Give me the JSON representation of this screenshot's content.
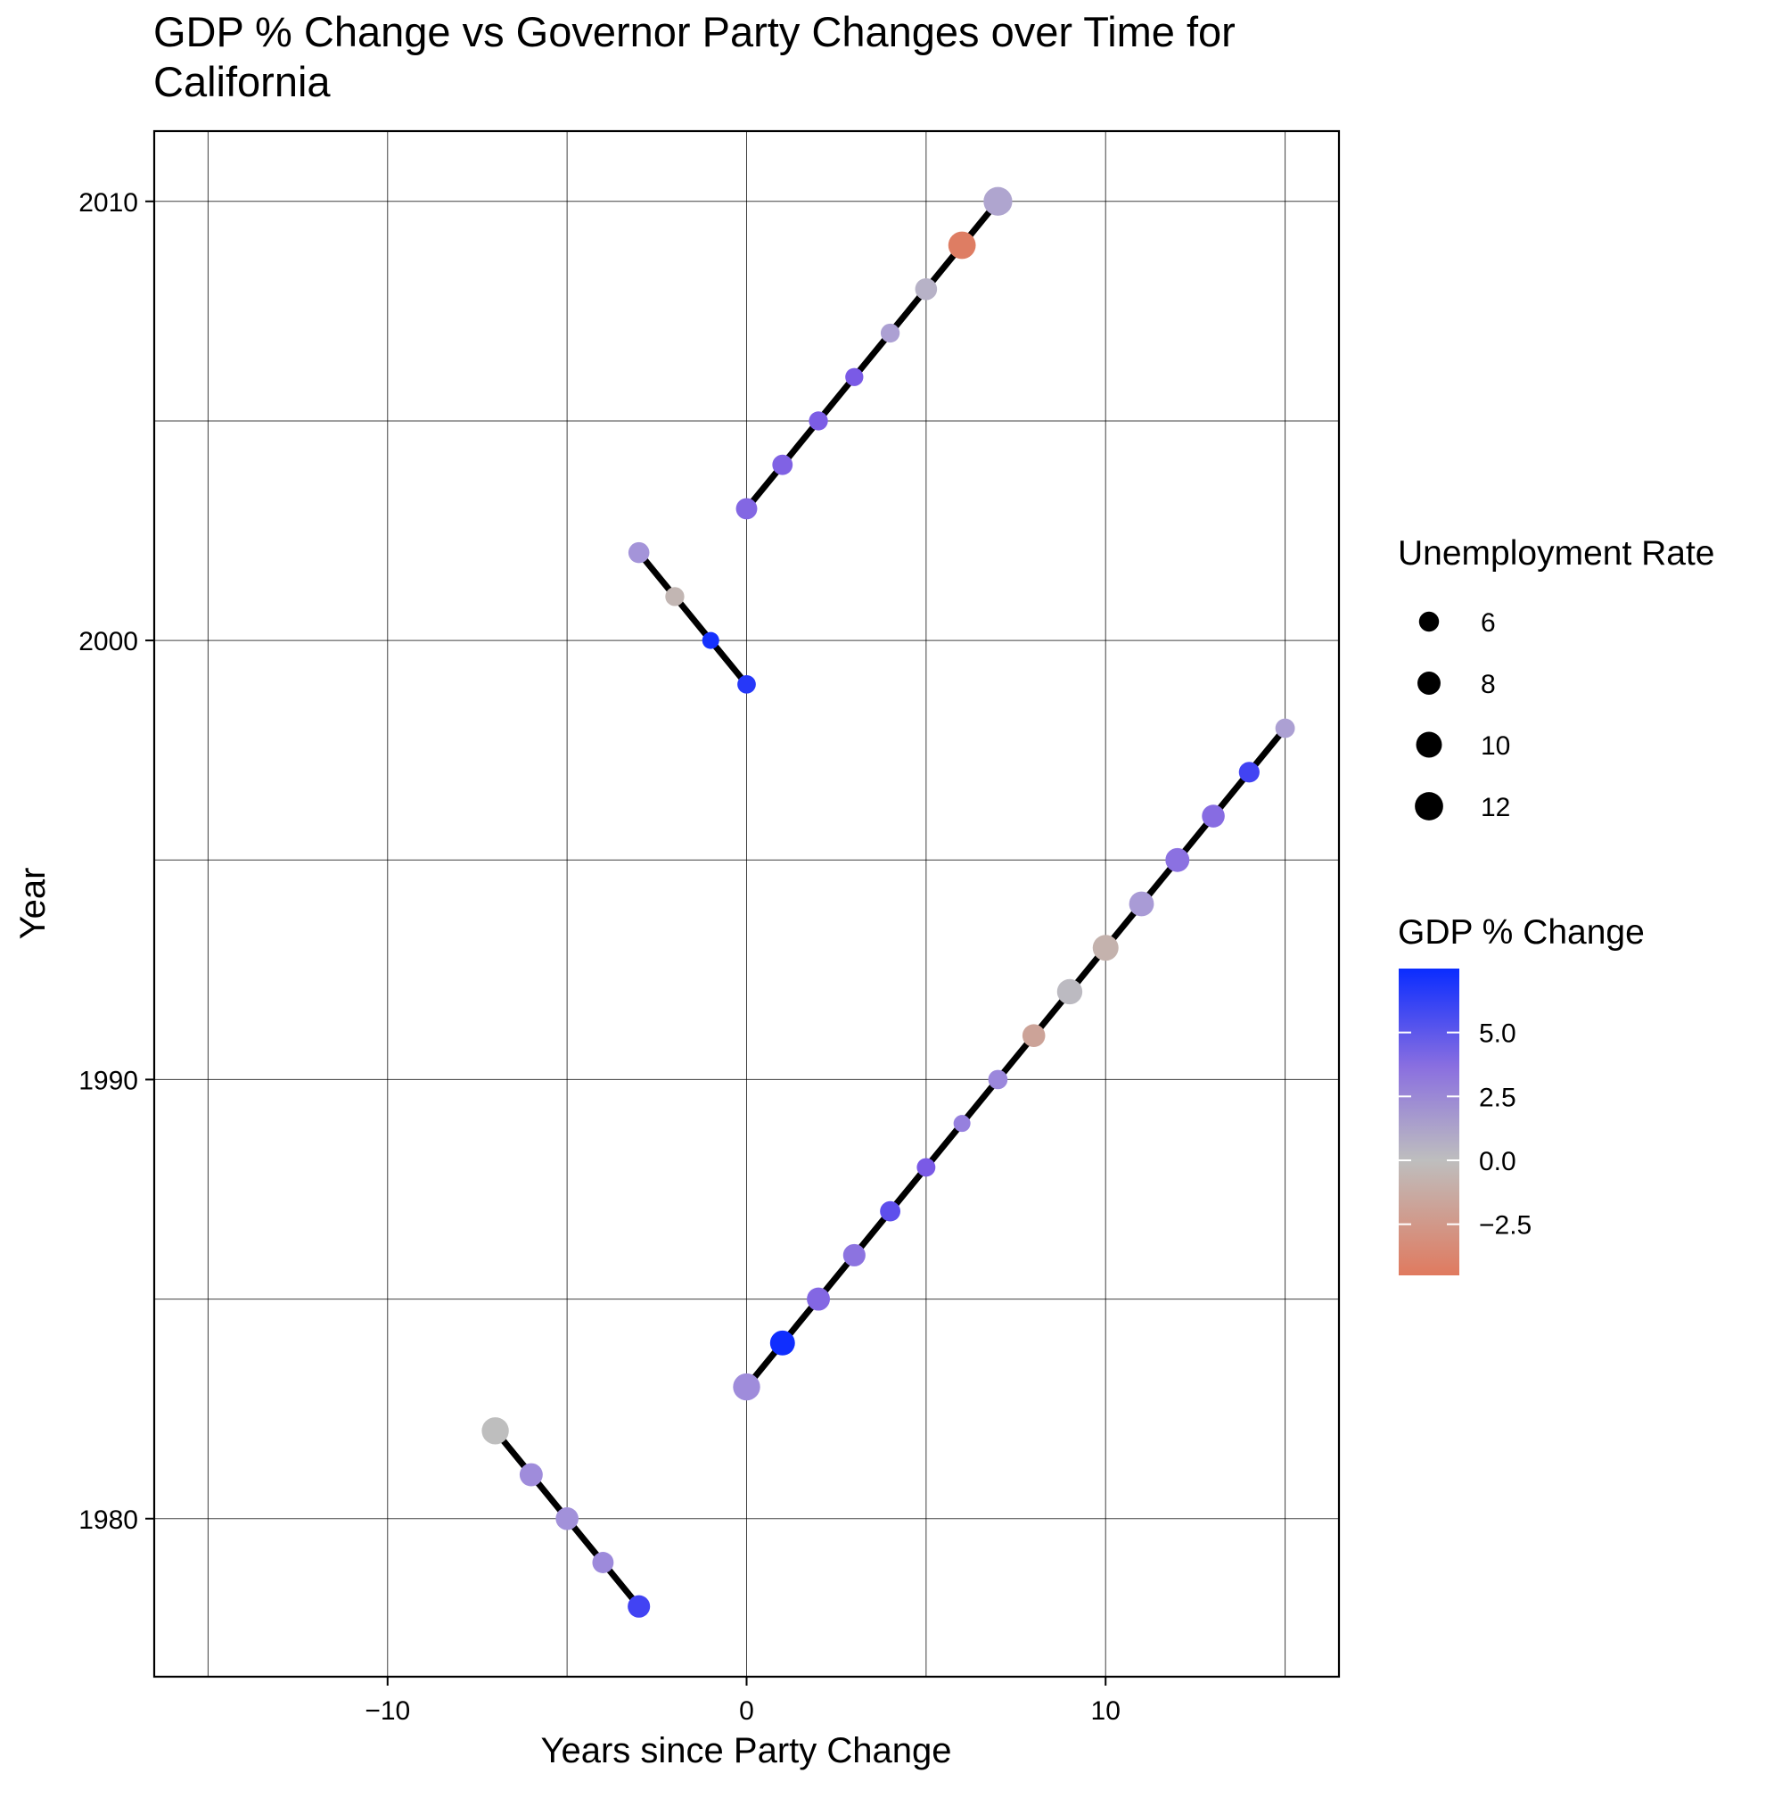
{
  "chart_data": {
    "type": "scatter",
    "title": "GDP % Change vs Governor Party Changes over Time for California",
    "title_lines": [
      "GDP % Change vs Governor Party Changes over Time for",
      "California"
    ],
    "xlabel": "Years since Party Change",
    "ylabel": "Year",
    "xlim": [
      -16.5,
      16.5
    ],
    "ylim": [
      1976.4,
      2011.6
    ],
    "x_ticks": [
      -10,
      0,
      10
    ],
    "x_tick_labels": [
      "−10",
      "0",
      "10"
    ],
    "x_minor_gridlines": [
      -15,
      -5,
      5,
      15
    ],
    "y_ticks": [
      1980,
      1990,
      2000,
      2010
    ],
    "y_tick_labels": [
      "1980",
      "1990",
      "2000",
      "2010"
    ],
    "y_minor_gridlines": [
      1985,
      1995,
      2005
    ],
    "grid": true,
    "line_color": "#000000",
    "color_scale": {
      "low": "#e07a5f",
      "mid": "#bebebe",
      "high": "#0a2cff",
      "domain": [
        -4.5,
        0,
        7.5
      ]
    },
    "series": [
      {
        "points": [
          {
            "x": -7,
            "y": 1982,
            "unemployment": 11.0,
            "gdp_change": 0.0
          },
          {
            "x": -6,
            "y": 1981,
            "unemployment": 8.0,
            "gdp_change": 3.5
          },
          {
            "x": -5,
            "y": 1980,
            "unemployment": 7.8,
            "gdp_change": 3.3
          },
          {
            "x": -4,
            "y": 1979,
            "unemployment": 6.8,
            "gdp_change": 3.6
          },
          {
            "x": -3,
            "y": 1978,
            "unemployment": 7.5,
            "gdp_change": 6.5
          }
        ]
      },
      {
        "points": [
          {
            "x": 0,
            "y": 1983,
            "unemployment": 11.0,
            "gdp_change": 3.5
          },
          {
            "x": 1,
            "y": 1984,
            "unemployment": 9.3,
            "gdp_change": 7.4
          },
          {
            "x": 2,
            "y": 1985,
            "unemployment": 8.0,
            "gdp_change": 5.0
          },
          {
            "x": 3,
            "y": 1986,
            "unemployment": 7.5,
            "gdp_change": 4.5
          },
          {
            "x": 4,
            "y": 1987,
            "unemployment": 6.2,
            "gdp_change": 6.0
          },
          {
            "x": 5,
            "y": 1988,
            "unemployment": 5.2,
            "gdp_change": 5.5
          },
          {
            "x": 6,
            "y": 1989,
            "unemployment": 4.3,
            "gdp_change": 4.0
          },
          {
            "x": 7,
            "y": 1990,
            "unemployment": 5.6,
            "gdp_change": 3.7
          },
          {
            "x": 8,
            "y": 1991,
            "unemployment": 7.8,
            "gdp_change": -1.8
          },
          {
            "x": 9,
            "y": 1992,
            "unemployment": 9.6,
            "gdp_change": 0.3
          },
          {
            "x": 10,
            "y": 1993,
            "unemployment": 10.0,
            "gdp_change": -0.8
          },
          {
            "x": 11,
            "y": 1994,
            "unemployment": 9.2,
            "gdp_change": 2.8
          },
          {
            "x": 12,
            "y": 1995,
            "unemployment": 8.6,
            "gdp_change": 4.6
          },
          {
            "x": 13,
            "y": 1996,
            "unemployment": 7.8,
            "gdp_change": 4.8
          },
          {
            "x": 14,
            "y": 1997,
            "unemployment": 6.4,
            "gdp_change": 6.5
          },
          {
            "x": 15,
            "y": 1998,
            "unemployment": 5.7,
            "gdp_change": 2.4
          }
        ]
      },
      {
        "points": [
          {
            "x": -3,
            "y": 2002,
            "unemployment": 6.6,
            "gdp_change": 3.2
          },
          {
            "x": -2,
            "y": 2001,
            "unemployment": 5.4,
            "gdp_change": -0.5
          },
          {
            "x": -1,
            "y": 2000,
            "unemployment": 4.3,
            "gdp_change": 7.3
          },
          {
            "x": 0,
            "y": 1999,
            "unemployment": 5.1,
            "gdp_change": 7.0
          }
        ]
      },
      {
        "points": [
          {
            "x": 0,
            "y": 2003,
            "unemployment": 6.8,
            "gdp_change": 5.0
          },
          {
            "x": 1,
            "y": 2004,
            "unemployment": 6.2,
            "gdp_change": 5.2
          },
          {
            "x": 2,
            "y": 2005,
            "unemployment": 5.4,
            "gdp_change": 5.4
          },
          {
            "x": 3,
            "y": 2006,
            "unemployment": 4.9,
            "gdp_change": 5.5
          },
          {
            "x": 4,
            "y": 2007,
            "unemployment": 5.4,
            "gdp_change": 2.4
          },
          {
            "x": 5,
            "y": 2008,
            "unemployment": 7.2,
            "gdp_change": 1.0
          },
          {
            "x": 6,
            "y": 2009,
            "unemployment": 11.3,
            "gdp_change": -4.3
          },
          {
            "x": 7,
            "y": 2010,
            "unemployment": 12.4,
            "gdp_change": 2.0
          }
        ]
      }
    ],
    "legend_size": {
      "title": "Unemployment Rate",
      "labels": [
        "6",
        "8",
        "10",
        "12"
      ],
      "values": [
        6,
        8,
        10,
        12
      ],
      "color": "#000000"
    },
    "legend_color": {
      "title": "GDP % Change",
      "labels": [
        "5.0",
        "2.5",
        "0.0",
        "−2.5"
      ],
      "values": [
        5.0,
        2.5,
        0.0,
        -2.5
      ]
    }
  }
}
